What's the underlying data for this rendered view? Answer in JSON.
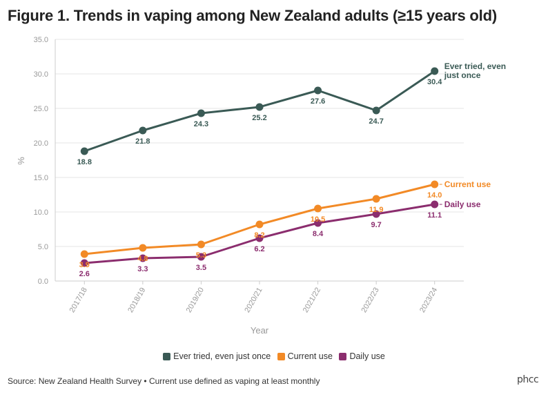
{
  "title": "Figure 1. Trends in vaping among New Zealand adults (≥15 years old)",
  "source": "Source: New Zealand Health Survey • Current use defined as vaping at least monthly",
  "logo": "phcc",
  "chart_data": {
    "type": "line",
    "title": "Figure 1. Trends in vaping among New Zealand adults (≥15 years old)",
    "xlabel": "Year",
    "ylabel": "%",
    "ylim": [
      0,
      35
    ],
    "yticks": [
      "0.0",
      "5.0",
      "10.0",
      "15.0",
      "20.0",
      "25.0",
      "30.0",
      "35.0"
    ],
    "categories": [
      "2017/18",
      "2018/19",
      "2019/20",
      "2020/21",
      "2021/22",
      "2022/23",
      "2023/24"
    ],
    "series": [
      {
        "name": "Ever tried, even just once",
        "end_label": [
          "Ever tried, even",
          "just once"
        ],
        "color": "#3a5a55",
        "values": [
          18.8,
          21.8,
          24.3,
          25.2,
          27.6,
          24.7,
          30.4
        ]
      },
      {
        "name": "Current use",
        "end_label": [
          "Current use"
        ],
        "color": "#f28a26",
        "values": [
          3.9,
          4.8,
          5.3,
          8.2,
          10.5,
          11.9,
          14.0
        ]
      },
      {
        "name": "Daily use",
        "end_label": [
          "Daily use"
        ],
        "color": "#8b2d6e",
        "values": [
          2.6,
          3.3,
          3.5,
          6.2,
          8.4,
          9.7,
          11.1
        ]
      }
    ],
    "legend_position": "bottom",
    "grid": "horizontal"
  }
}
